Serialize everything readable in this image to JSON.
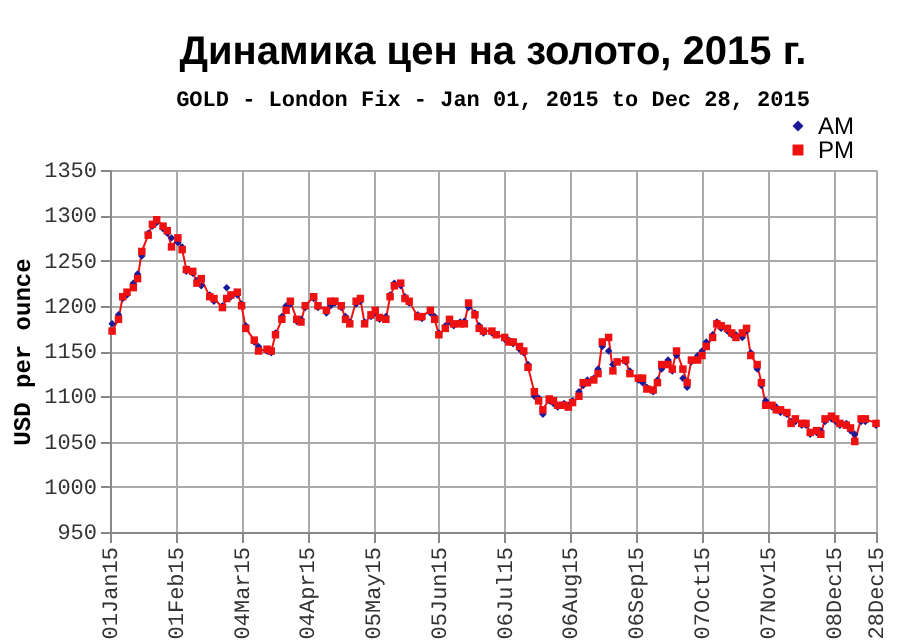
{
  "chart_data": {
    "type": "line",
    "title": "Динамика цен на золото, 2015 г.",
    "subtitle": "GOLD - London Fix - Jan 01, 2015 to Dec 28, 2015",
    "ylabel": "USD per ounce",
    "x": [
      "2015-01-02",
      "2015-01-05",
      "2015-01-07",
      "2015-01-09",
      "2015-01-12",
      "2015-01-14",
      "2015-01-16",
      "2015-01-19",
      "2015-01-21",
      "2015-01-23",
      "2015-01-26",
      "2015-01-28",
      "2015-01-30",
      "2015-02-02",
      "2015-02-04",
      "2015-02-06",
      "2015-02-09",
      "2015-02-11",
      "2015-02-13",
      "2015-02-17",
      "2015-02-19",
      "2015-02-23",
      "2015-02-25",
      "2015-02-27",
      "2015-03-02",
      "2015-03-04",
      "2015-03-06",
      "2015-03-10",
      "2015-03-12",
      "2015-03-16",
      "2015-03-18",
      "2015-03-20",
      "2015-03-23",
      "2015-03-25",
      "2015-03-27",
      "2015-03-30",
      "2015-04-01",
      "2015-04-03",
      "2015-04-07",
      "2015-04-09",
      "2015-04-13",
      "2015-04-15",
      "2015-04-17",
      "2015-04-20",
      "2015-04-22",
      "2015-04-24",
      "2015-04-27",
      "2015-04-29",
      "2015-05-01",
      "2015-05-04",
      "2015-05-06",
      "2015-05-08",
      "2015-05-11",
      "2015-05-13",
      "2015-05-15",
      "2015-05-18",
      "2015-05-20",
      "2015-05-22",
      "2015-05-26",
      "2015-05-28",
      "2015-06-01",
      "2015-06-03",
      "2015-06-05",
      "2015-06-08",
      "2015-06-10",
      "2015-06-12",
      "2015-06-15",
      "2015-06-17",
      "2015-06-19",
      "2015-06-22",
      "2015-06-24",
      "2015-06-26",
      "2015-06-30",
      "2015-07-02",
      "2015-07-06",
      "2015-07-08",
      "2015-07-10",
      "2015-07-13",
      "2015-07-15",
      "2015-07-17",
      "2015-07-20",
      "2015-07-22",
      "2015-07-24",
      "2015-07-27",
      "2015-07-29",
      "2015-07-31",
      "2015-08-03",
      "2015-08-05",
      "2015-08-07",
      "2015-08-10",
      "2015-08-12",
      "2015-08-14",
      "2015-08-17",
      "2015-08-19",
      "2015-08-21",
      "2015-08-24",
      "2015-08-26",
      "2015-08-28",
      "2015-09-01",
      "2015-09-03",
      "2015-09-07",
      "2015-09-09",
      "2015-09-11",
      "2015-09-14",
      "2015-09-16",
      "2015-09-18",
      "2015-09-21",
      "2015-09-23",
      "2015-09-25",
      "2015-09-28",
      "2015-09-30",
      "2015-10-02",
      "2015-10-05",
      "2015-10-07",
      "2015-10-09",
      "2015-10-12",
      "2015-10-14",
      "2015-10-16",
      "2015-10-19",
      "2015-10-21",
      "2015-10-23",
      "2015-10-26",
      "2015-10-28",
      "2015-10-30",
      "2015-11-02",
      "2015-11-04",
      "2015-11-06",
      "2015-11-09",
      "2015-11-11",
      "2015-11-13",
      "2015-11-16",
      "2015-11-18",
      "2015-11-20",
      "2015-11-23",
      "2015-11-25",
      "2015-11-27",
      "2015-11-30",
      "2015-12-02",
      "2015-12-04",
      "2015-12-07",
      "2015-12-09",
      "2015-12-11",
      "2015-12-14",
      "2015-12-16",
      "2015-12-18",
      "2015-12-21",
      "2015-12-23",
      "2015-12-28"
    ],
    "series": [
      {
        "name": "AM",
        "type": "scatter",
        "marker": "diamond",
        "color": "#1a1a99",
        "values": [
          1180,
          1190,
          1208,
          1212,
          1225,
          1235,
          1255,
          1280,
          1288,
          1292,
          1285,
          1280,
          1275,
          1270,
          1265,
          1238,
          1236,
          1228,
          1222,
          1212,
          1205,
          1200,
          1220,
          1210,
          1212,
          1202,
          1178,
          1160,
          1155,
          1150,
          1148,
          1170,
          1188,
          1200,
          1202,
          1183,
          1185,
          1198,
          1208,
          1198,
          1192,
          1200,
          1203,
          1198,
          1188,
          1182,
          1202,
          1205,
          1182,
          1188,
          1192,
          1185,
          1188,
          1212,
          1225,
          1222,
          1210,
          1203,
          1190,
          1186,
          1192,
          1188,
          1170,
          1178,
          1182,
          1178,
          1182,
          1183,
          1198,
          1192,
          1178,
          1170,
          1170,
          1168,
          1163,
          1162,
          1158,
          1152,
          1148,
          1135,
          1100,
          1098,
          1080,
          1095,
          1092,
          1088,
          1092,
          1090,
          1095,
          1105,
          1112,
          1118,
          1120,
          1130,
          1155,
          1150,
          1135,
          1138,
          1138,
          1128,
          1118,
          1115,
          1110,
          1105,
          1118,
          1130,
          1140,
          1128,
          1145,
          1120,
          1110,
          1138,
          1145,
          1150,
          1160,
          1168,
          1182,
          1175,
          1172,
          1168,
          1168,
          1165,
          1172,
          1148,
          1130,
          1112,
          1095,
          1088,
          1088,
          1082,
          1080,
          1072,
          1072,
          1068,
          1068,
          1058,
          1060,
          1062,
          1072,
          1075,
          1072,
          1068,
          1070,
          1062,
          1058,
          1072,
          1072,
          1068
        ]
      },
      {
        "name": "PM",
        "marker": "square",
        "color": "#ee1111",
        "values": [
          1172,
          1185,
          1210,
          1215,
          1220,
          1230,
          1260,
          1278,
          1290,
          1295,
          1288,
          1283,
          1265,
          1275,
          1262,
          1240,
          1238,
          1225,
          1230,
          1210,
          1208,
          1198,
          1208,
          1212,
          1215,
          1200,
          1175,
          1162,
          1150,
          1152,
          1150,
          1168,
          1185,
          1195,
          1205,
          1185,
          1182,
          1200,
          1210,
          1200,
          1195,
          1205,
          1205,
          1200,
          1185,
          1180,
          1205,
          1208,
          1180,
          1190,
          1195,
          1187,
          1185,
          1210,
          1222,
          1225,
          1208,
          1205,
          1188,
          1188,
          1195,
          1185,
          1168,
          1175,
          1185,
          1180,
          1180,
          1180,
          1203,
          1190,
          1175,
          1172,
          1172,
          1168,
          1165,
          1160,
          1160,
          1155,
          1150,
          1132,
          1105,
          1095,
          1085,
          1097,
          1095,
          1090,
          1090,
          1088,
          1093,
          1100,
          1115,
          1115,
          1118,
          1125,
          1160,
          1165,
          1128,
          1138,
          1140,
          1125,
          1120,
          1120,
          1108,
          1107,
          1115,
          1135,
          1135,
          1130,
          1150,
          1130,
          1115,
          1140,
          1140,
          1145,
          1155,
          1165,
          1180,
          1178,
          1175,
          1170,
          1165,
          1170,
          1175,
          1145,
          1135,
          1115,
          1090,
          1090,
          1085,
          1085,
          1082,
          1070,
          1075,
          1070,
          1070,
          1060,
          1062,
          1058,
          1075,
          1078,
          1075,
          1070,
          1068,
          1065,
          1050,
          1075,
          1075,
          1070
        ]
      }
    ],
    "xlim": [
      "2015-01-01",
      "2015-12-28"
    ],
    "xticks": [
      {
        "value": "2015-01-01",
        "label": "01Jan15"
      },
      {
        "value": "2015-02-01",
        "label": "01Feb15"
      },
      {
        "value": "2015-03-04",
        "label": "04Mar15"
      },
      {
        "value": "2015-04-04",
        "label": "04Apr15"
      },
      {
        "value": "2015-05-05",
        "label": "05May15"
      },
      {
        "value": "2015-06-05",
        "label": "05Jun15"
      },
      {
        "value": "2015-07-06",
        "label": "06Jul15"
      },
      {
        "value": "2015-08-06",
        "label": "06Aug15"
      },
      {
        "value": "2015-09-06",
        "label": "06Sep15"
      },
      {
        "value": "2015-10-07",
        "label": "07Oct15"
      },
      {
        "value": "2015-11-07",
        "label": "07Nov15"
      },
      {
        "value": "2015-12-08",
        "label": "08Dec15"
      },
      {
        "value": "2015-12-28",
        "label": "28Dec15"
      }
    ],
    "ylim": [
      950,
      1350
    ],
    "yticks": [
      950,
      1000,
      1050,
      1100,
      1150,
      1200,
      1250,
      1300,
      1350
    ],
    "grid": true,
    "legend": "top right",
    "line_style": "solid"
  }
}
